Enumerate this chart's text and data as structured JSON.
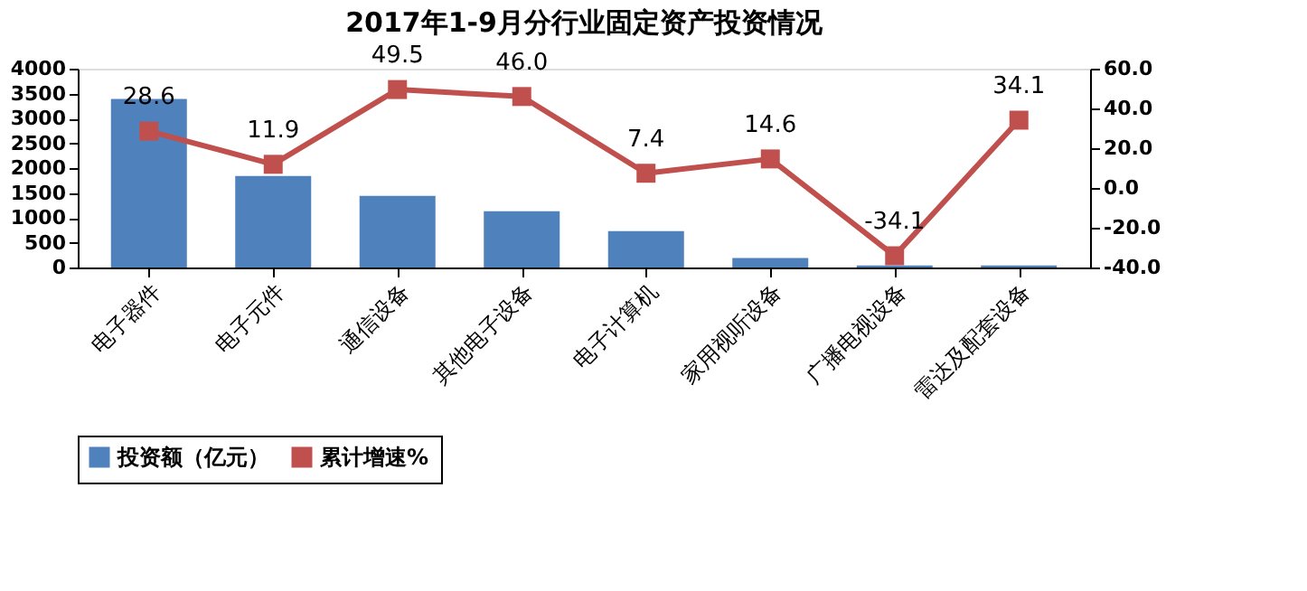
{
  "chart_data": {
    "type": "bar",
    "title": "2017年1-9月分行业固定资产投资情况",
    "categories": [
      "电子器件",
      "电子元件",
      "通信设备",
      "其他电子设备",
      "电子计算机",
      "家用视听设备",
      "广播电视设备",
      "雷达及配套设备"
    ],
    "series": [
      {
        "name": "投资额（亿元）",
        "color": "#4f81bd",
        "values": [
          3390,
          1840,
          1440,
          1130,
          730,
          190,
          40,
          40
        ]
      },
      {
        "name": "累计增速%",
        "type": "line",
        "axis": "y2",
        "color": "#c0504d",
        "marker": "square",
        "values": [
          28.6,
          11.9,
          49.5,
          46.0,
          7.4,
          14.6,
          -34.1,
          34.1
        ],
        "value_labels": [
          "28.6",
          "11.9",
          "49.5",
          "46.0",
          "7.4",
          "14.6",
          "-34.1",
          "34.1"
        ]
      }
    ],
    "ylim": [
      0,
      4000
    ],
    "yticks": [
      0,
      500,
      1000,
      1500,
      2000,
      2500,
      3000,
      3500,
      4000
    ],
    "y2lim": [
      -40,
      60
    ],
    "y2ticks": [
      {
        "value": -40,
        "label": "-40.0"
      },
      {
        "value": -20,
        "label": "-20.0"
      },
      {
        "value": 0,
        "label": "0.0"
      },
      {
        "value": 20,
        "label": "20.0"
      },
      {
        "value": 40,
        "label": "40.0"
      },
      {
        "value": 60,
        "label": "60.0"
      }
    ],
    "grid": false,
    "legend": "bottom"
  }
}
